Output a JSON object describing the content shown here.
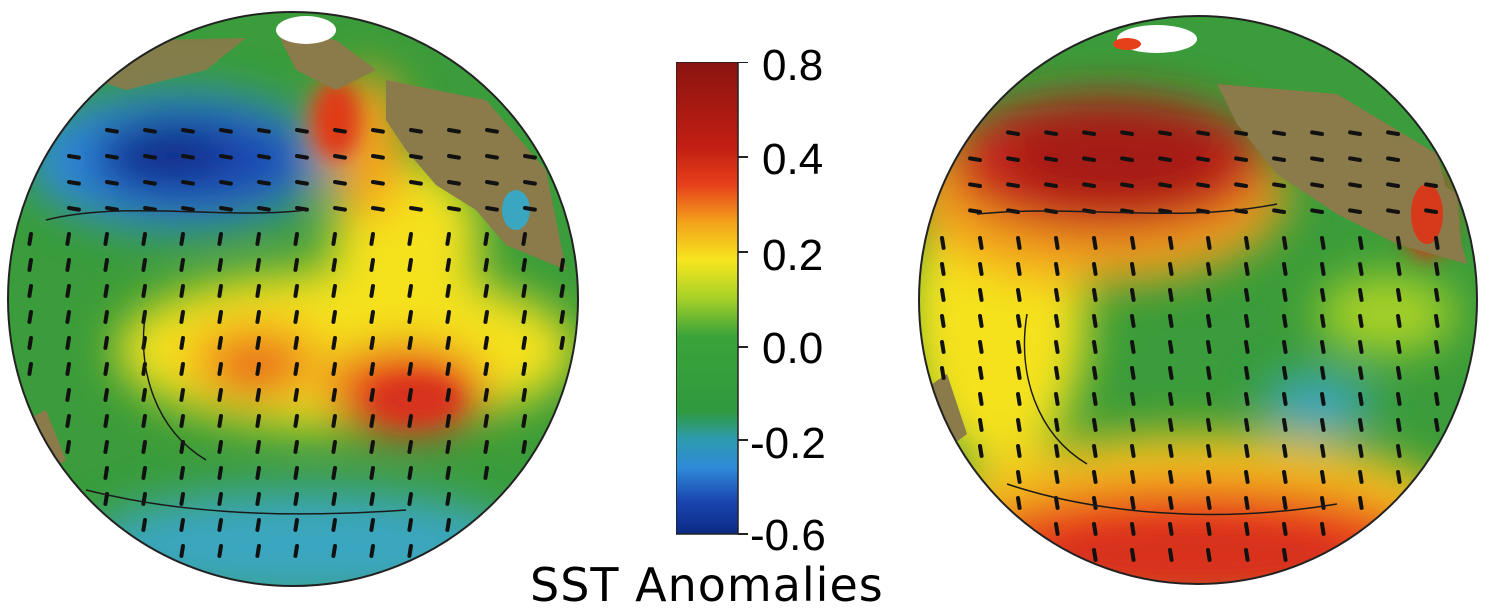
{
  "colorbar": {
    "title": "SST Anomalies",
    "ticks": [
      "0.8",
      "0.4",
      "0.2",
      "0.0",
      "-0.2",
      "-0.6"
    ],
    "tick_values": [
      0.8,
      0.4,
      0.2,
      0.0,
      -0.2,
      -0.6
    ],
    "stops": [
      "#8a1410",
      "#c21e12",
      "#e6401a",
      "#f3a21a",
      "#f7e61f",
      "#a7d127",
      "#3ba33a",
      "#2f9a3e",
      "#2d9bb0",
      "#2f8ad8",
      "#1a46b0",
      "#0c2a86"
    ]
  },
  "colors": {
    "land": "#8b7a4a",
    "ice": "#ffffff",
    "vector": "#111111"
  },
  "left_globe": {
    "label_icon": "globe-icon",
    "anomaly_pattern": "cold north pacific, warm tropical band"
  },
  "right_globe": {
    "label_icon": "globe-icon",
    "anomaly_pattern": "warm north pacific, cool tropics, warm south"
  }
}
